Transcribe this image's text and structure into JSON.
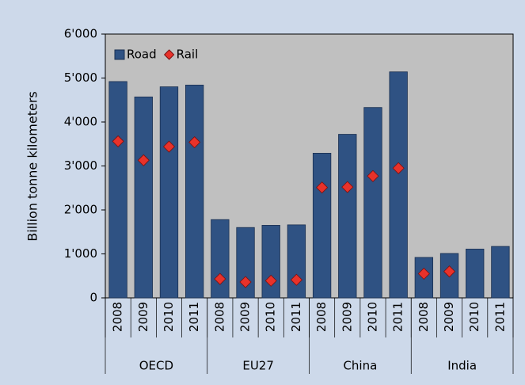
{
  "chart_data": {
    "type": "bar",
    "y_label": "Billion tonne kilometers",
    "categories": [
      "2008",
      "2009",
      "2010",
      "2011",
      "2008",
      "2009",
      "2010",
      "2011",
      "2008",
      "2009",
      "2010",
      "2011",
      "2008",
      "2009",
      "2010",
      "2011"
    ],
    "groups": [
      "OECD",
      "EU27",
      "China",
      "India"
    ],
    "series": [
      {
        "name": "Road",
        "type": "bar",
        "color": "#2f5283",
        "values": [
          4920,
          4570,
          4800,
          4840,
          1780,
          1600,
          1650,
          1660,
          3290,
          3720,
          4330,
          5140,
          920,
          1010,
          1110,
          1170
        ]
      },
      {
        "name": "Rail",
        "type": "marker",
        "color": "#e8322a",
        "values": [
          3560,
          3130,
          3440,
          3540,
          430,
          360,
          390,
          410,
          2510,
          2520,
          2770,
          2950,
          550,
          600,
          null,
          null
        ]
      }
    ],
    "ylim": [
      0,
      6000
    ],
    "yticks": [
      0,
      {
        "value": 1000,
        "label": "1'000"
      },
      {
        "value": 2000,
        "label": "2'000"
      },
      {
        "value": 3000,
        "label": "3'000"
      },
      {
        "value": 4000,
        "label": "4'000"
      },
      {
        "value": 5000,
        "label": "5'000"
      },
      {
        "value": 6000,
        "label": "6'000"
      }
    ],
    "grid": false,
    "legend": "top-left"
  }
}
